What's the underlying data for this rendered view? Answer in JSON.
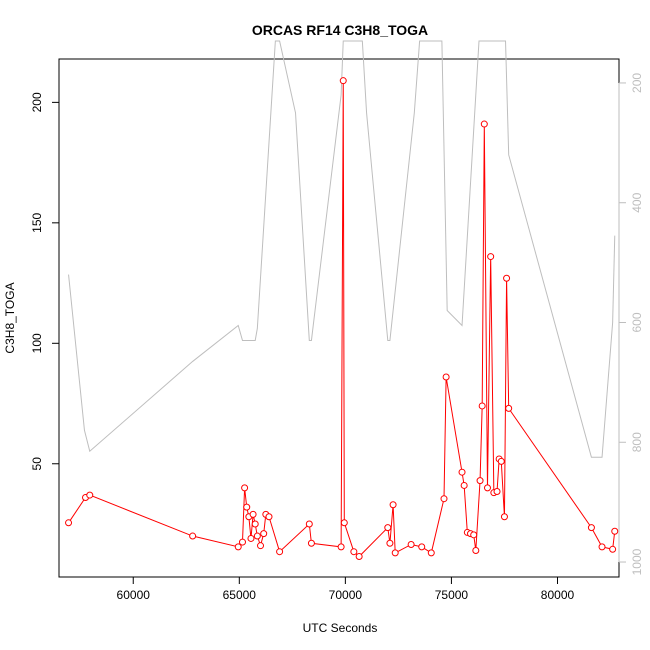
{
  "chart_data": {
    "type": "line",
    "title": "ORCAS RF14 C3H8_TOGA",
    "xlabel": "UTC Seconds",
    "ylabel": "C3H8_TOGA",
    "xlim": [
      56500,
      82900
    ],
    "ylim": [
      3,
      218
    ],
    "x_ticks": [
      60000,
      65000,
      70000,
      75000,
      80000
    ],
    "y_ticks": [
      50,
      100,
      150,
      200
    ],
    "y2lim": [
      1025,
      160
    ],
    "y2_ticks": [
      200,
      400,
      600,
      800,
      1000
    ],
    "grid": false,
    "legend": "none",
    "series": [
      {
        "axis": "left",
        "color": "#ff0000",
        "markers": "open-circle",
        "x": [
          56950,
          57750,
          57950,
          62800,
          64950,
          65150,
          65250,
          65350,
          65450,
          65550,
          65650,
          65750,
          65850,
          66000,
          66150,
          66250,
          66400,
          66900,
          68300,
          68400,
          69800,
          69900,
          69950,
          70400,
          70650,
          72000,
          72100,
          72250,
          72350,
          73100,
          73600,
          74050,
          74650,
          74750,
          75500,
          75600,
          75750,
          75900,
          76050,
          76150,
          76350,
          76450,
          76550,
          76700,
          76850,
          77000,
          77150,
          77250,
          77350,
          77500,
          77600,
          77700,
          81600,
          82100,
          82600,
          82700
        ],
        "y": [
          25.5,
          36,
          37,
          20,
          15.5,
          17.5,
          40,
          32,
          28,
          19,
          29,
          25,
          20,
          16,
          21,
          29,
          28,
          13.5,
          25,
          17,
          15.5,
          209,
          25.5,
          13.5,
          11.5,
          23.5,
          17,
          33,
          13,
          16.5,
          15.5,
          13,
          35.5,
          86,
          46.5,
          41,
          21.5,
          21,
          20.5,
          14,
          43,
          74,
          191,
          40,
          136,
          38,
          38.5,
          52,
          51,
          28,
          127,
          73,
          23.5,
          15.5,
          14.5,
          22
        ]
      },
      {
        "axis": "right",
        "color": "#bebebe",
        "markers": "none",
        "x": [
          56950,
          57700,
          57950,
          62800,
          64950,
          65150,
          65500,
          65750,
          65850,
          66700,
          66900,
          67650,
          68300,
          68400,
          69800,
          69900,
          70800,
          71000,
          72000,
          72100,
          73250,
          73500,
          74550,
          74800,
          75500,
          76300,
          76550,
          76800,
          77550,
          77700,
          81600,
          82100,
          82600,
          82700
        ],
        "y": [
          520,
          780,
          815,
          665,
          605,
          630,
          630,
          630,
          610,
          130,
          130,
          250,
          630,
          630,
          220,
          130,
          130,
          250,
          630,
          630,
          250,
          130,
          130,
          580,
          605,
          130,
          130,
          130,
          130,
          320,
          825,
          825,
          600,
          455
        ]
      }
    ]
  }
}
